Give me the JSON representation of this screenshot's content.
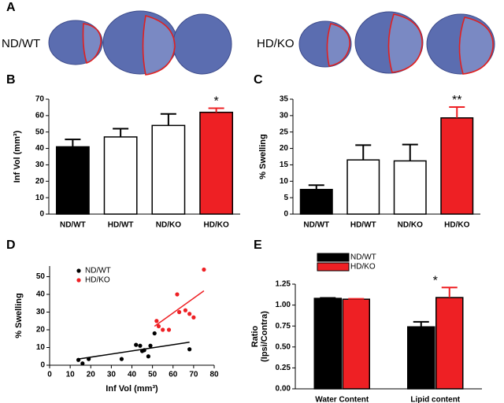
{
  "panel_a": {
    "letter": "A",
    "groups": [
      "ND/WT",
      "HD/KO"
    ]
  },
  "chart_data": [
    {
      "type": "bar",
      "letter": "B",
      "categories": [
        "ND/WT",
        "HD/WT",
        "ND/KO",
        "HD/KO"
      ],
      "values": [
        41,
        47,
        54,
        62
      ],
      "errors": [
        4.5,
        5,
        7,
        2.5
      ],
      "colors": [
        "#000000",
        "#ffffff",
        "#ffffff",
        "#ee2024"
      ],
      "ylabel": [
        "Inf Vol (mm³)"
      ],
      "ylim": [
        0,
        70
      ],
      "yticks": [
        0,
        10,
        20,
        30,
        40,
        50,
        60,
        70
      ],
      "annotations": [
        {
          "text": "*",
          "category": "HD/KO"
        }
      ]
    },
    {
      "type": "bar",
      "letter": "C",
      "categories": [
        "ND/WT",
        "HD/WT",
        "ND/KO",
        "HD/KO"
      ],
      "values": [
        7.5,
        16.5,
        16.2,
        29.3
      ],
      "errors": [
        1.3,
        4.5,
        5,
        3.3
      ],
      "colors": [
        "#000000",
        "#ffffff",
        "#ffffff",
        "#ee2024"
      ],
      "ylabel": [
        "% Swelling"
      ],
      "ylim": [
        0,
        35
      ],
      "yticks": [
        0,
        5,
        10,
        15,
        20,
        25,
        30,
        35
      ],
      "annotations": [
        {
          "text": "**",
          "category": "HD/KO"
        }
      ]
    },
    {
      "type": "scatter",
      "letter": "D",
      "xlabel": "Inf Vol (mm³)",
      "ylabel": [
        "% Swelling"
      ],
      "xlim": [
        0,
        80
      ],
      "xticks": [
        0,
        10,
        20,
        30,
        40,
        50,
        60,
        70,
        80
      ],
      "ylim": [
        0,
        56
      ],
      "yticks": [
        0,
        10,
        20,
        30,
        40,
        50
      ],
      "series": [
        {
          "name": "ND/WT",
          "color": "#000000",
          "x": [
            14,
            16,
            19,
            35,
            42,
            44,
            45,
            46,
            48,
            49,
            51,
            68
          ],
          "y": [
            3,
            1,
            3.5,
            3.5,
            11.5,
            11,
            8,
            8.5,
            5,
            11,
            18,
            9
          ],
          "fit_x": [
            14,
            68
          ],
          "fit_y": [
            3.5,
            13
          ]
        },
        {
          "name": "HD/KO",
          "color": "#ee2024",
          "x": [
            52,
            53,
            55,
            58,
            62,
            63,
            66,
            68,
            70,
            75
          ],
          "y": [
            25,
            22,
            20,
            20,
            40,
            30,
            31,
            29,
            27,
            54
          ],
          "fit_x": [
            51,
            75
          ],
          "fit_y": [
            22,
            42
          ]
        }
      ]
    },
    {
      "type": "bar",
      "letter": "E",
      "categories": [
        "Water Content",
        "Lipid content"
      ],
      "ylabel": [
        "Ratio",
        "(Ipsi/Contra)"
      ],
      "ylim": [
        0,
        1.25
      ],
      "yticks": [
        {
          "value": 0,
          "label": "0.00"
        },
        0.25,
        {
          "value": 0.5,
          "label": "0.50"
        },
        0.75,
        {
          "value": 1,
          "label": "1.00"
        },
        1.25
      ],
      "series": [
        {
          "name": "ND/WT",
          "color": "#000000",
          "values": [
            1.08,
            0.74
          ],
          "errors": [
            0.005,
            0.06
          ]
        },
        {
          "name": "HD/KO",
          "color": "#ee2024",
          "values": [
            1.07,
            1.09
          ],
          "errors": [
            0.005,
            0.12
          ]
        }
      ],
      "annotations": [
        {
          "text": "*",
          "category": "Lipid content"
        }
      ]
    }
  ]
}
